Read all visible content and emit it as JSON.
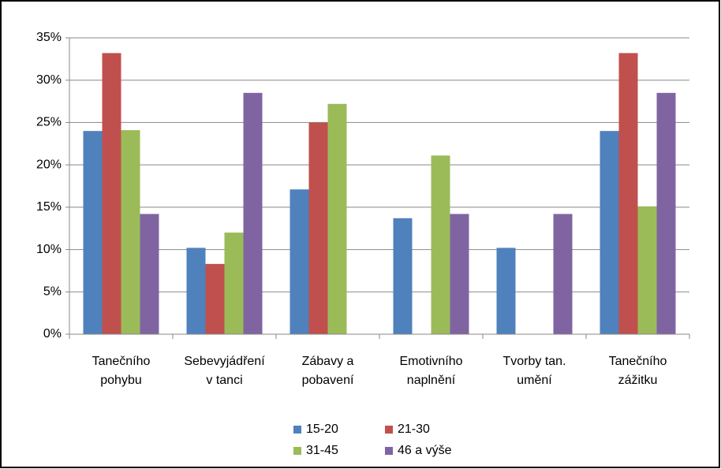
{
  "chart_data": {
    "type": "bar",
    "categories": [
      [
        "Tanečního",
        "pohybu"
      ],
      [
        "Sebevyjádření",
        "v tanci"
      ],
      [
        "Zábavy a",
        "pobavení"
      ],
      [
        "Emotivního",
        "naplnění"
      ],
      [
        "Tvorby tan.",
        "umění"
      ],
      [
        "Tanečního",
        "zážitku"
      ]
    ],
    "series": [
      {
        "name": "15-20",
        "color": "#4f81bd",
        "values": [
          24.0,
          10.2,
          17.1,
          13.7,
          10.2,
          24.0
        ]
      },
      {
        "name": "21-30",
        "color": "#c0504d",
        "values": [
          33.2,
          8.3,
          25.0,
          0,
          0,
          33.2
        ]
      },
      {
        "name": "31-45",
        "color": "#9bbb59",
        "values": [
          24.1,
          12.0,
          27.2,
          21.1,
          0,
          15.1
        ]
      },
      {
        "name": "46 a výše",
        "color": "#8064a2",
        "values": [
          14.2,
          28.5,
          0,
          14.2,
          14.2,
          28.5
        ]
      }
    ],
    "ylim": [
      0,
      35
    ],
    "yticks": [
      {
        "value": 0,
        "label": "0%"
      },
      {
        "value": 5,
        "label": "5%"
      },
      {
        "value": 10,
        "label": "10%"
      },
      {
        "value": 15,
        "label": "15%"
      },
      {
        "value": 20,
        "label": "20%"
      },
      {
        "value": 25,
        "label": "25%"
      },
      {
        "value": 30,
        "label": "30%"
      },
      {
        "value": 35,
        "label": "35%"
      }
    ],
    "grid": true
  }
}
